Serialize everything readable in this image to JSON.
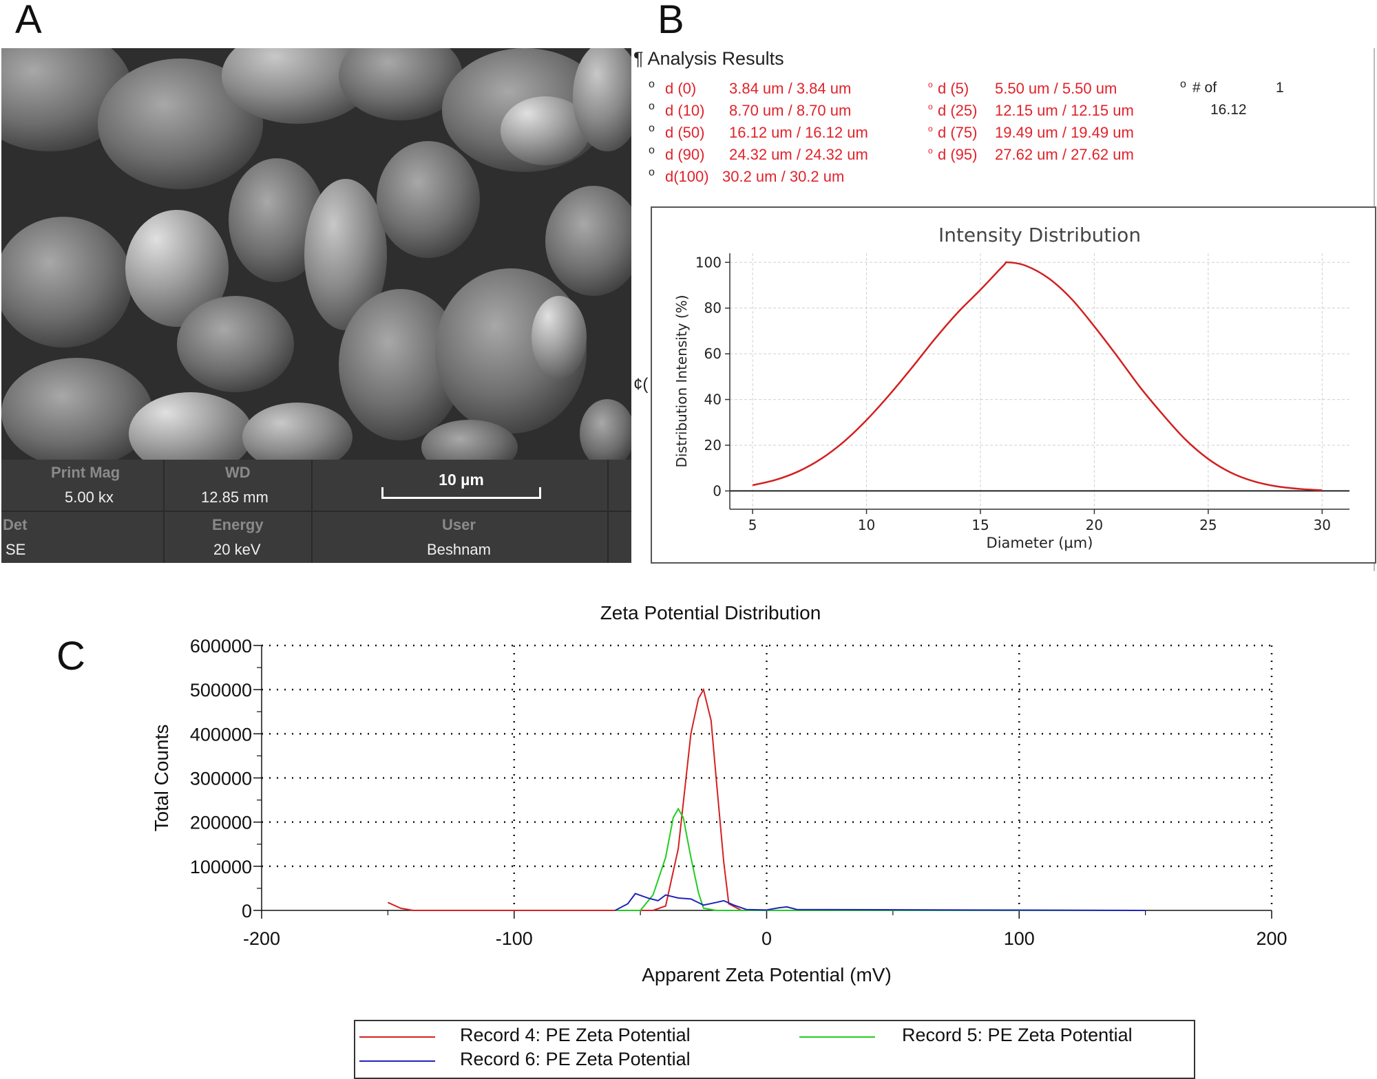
{
  "panels": {
    "a": "A",
    "b": "B",
    "c": "C"
  },
  "sem": {
    "print_mag_label": "Print Mag",
    "print_mag_value": "5.00 kx",
    "wd_label": "WD",
    "wd_value": "12.85 mm",
    "scale_bar_label": "10 µm",
    "det_label": "Det",
    "det_value": "SE",
    "energy_label": "Energy",
    "energy_value": "20 keV",
    "user_label": "User",
    "user_value": "Beshnam"
  },
  "analysis": {
    "title": "¶ Analysis Results",
    "col1": [
      {
        "label": "d (0)",
        "value": "3.84 um / 3.84 um"
      },
      {
        "label": "d (10)",
        "value": "8.70 um / 8.70 um"
      },
      {
        "label": "d (50)",
        "value": "16.12 um / 16.12 um"
      },
      {
        "label": "d (90)",
        "value": "24.32 um / 24.32 um"
      },
      {
        "label": "d(100)",
        "value": "30.2 um / 30.2 um"
      }
    ],
    "col2": [
      {
        "label": "d (5)",
        "value": "5.50 um / 5.50 um"
      },
      {
        "label": "d (25)",
        "value": "12.15 um / 12.15 um"
      },
      {
        "label": "d (75)",
        "value": "19.49 um / 19.49 um"
      },
      {
        "label": "d (95)",
        "value": "27.62 um / 27.62 um"
      }
    ],
    "count_label": "# of",
    "count_value": "1",
    "mean_value": "16.12",
    "side_marker": "¢("
  },
  "chart_data": [
    {
      "type": "line",
      "title": "Intensity Distribution",
      "xlabel": "Diameter (µm)",
      "ylabel": "Distribution Intensity (%)",
      "xlim": [
        4,
        31.2
      ],
      "ylim": [
        -8,
        104
      ],
      "xticks": [
        5,
        10,
        15,
        20,
        25,
        30
      ],
      "yticks": [
        0,
        20,
        40,
        60,
        80,
        100
      ],
      "grid": true,
      "color": "#d22020",
      "x": [
        5,
        6,
        7,
        8,
        9,
        10,
        11,
        12,
        13,
        14,
        15,
        16,
        16.2,
        17,
        18,
        19,
        20,
        21,
        22,
        23,
        24,
        25,
        26,
        27,
        28,
        29,
        30
      ],
      "y": [
        2.5,
        4.8,
        8.5,
        14,
        21.5,
        31,
        42,
        54,
        66.5,
        78,
        88,
        98.5,
        100,
        98.5,
        93,
        84,
        72,
        59,
        45.5,
        33.5,
        22.5,
        14,
        8,
        4.2,
        2,
        0.9,
        0.3
      ]
    },
    {
      "type": "line",
      "title": "Zeta Potential Distribution",
      "xlabel": "Apparent Zeta Potential (mV)",
      "ylabel": "Total Counts",
      "xlim": [
        -200,
        200
      ],
      "ylim": [
        0,
        600000
      ],
      "xticks": [
        -200,
        -100,
        0,
        100,
        200
      ],
      "yticks": [
        0,
        100000,
        200000,
        300000,
        400000,
        500000,
        600000
      ],
      "grid": true,
      "legend": "bottom",
      "series": [
        {
          "name": "Record 4: PE Zeta Potential",
          "color": "#d42020",
          "x": [
            -150,
            -145,
            -140,
            -60,
            -45,
            -40,
            -35,
            -30,
            -27,
            -25,
            -22,
            -20,
            -17,
            -15,
            -10,
            0,
            150
          ],
          "y": [
            18000,
            5000,
            0,
            0,
            0,
            10000,
            140000,
            400000,
            480000,
            500000,
            430000,
            300000,
            110000,
            15000,
            0,
            0,
            0
          ]
        },
        {
          "name": "Record 5: PE Zeta Potential",
          "color": "#22cc22",
          "x": [
            -60,
            -50,
            -45,
            -40,
            -37,
            -35,
            -33,
            -30,
            -27,
            -25,
            -20,
            150
          ],
          "y": [
            0,
            0,
            35000,
            120000,
            210000,
            230000,
            210000,
            120000,
            40000,
            5000,
            0,
            0
          ]
        },
        {
          "name": "Record 6: PE Zeta Potential",
          "color": "#2222bb",
          "x": [
            -60,
            -55,
            -52,
            -47,
            -43,
            -40,
            -35,
            -30,
            -25,
            -20,
            -17,
            -13,
            -8,
            0,
            5,
            8,
            12,
            150
          ],
          "y": [
            0,
            15000,
            38000,
            28000,
            22000,
            35000,
            28000,
            26000,
            12000,
            18000,
            22000,
            12000,
            2000,
            1000,
            6000,
            8000,
            2000,
            0
          ]
        }
      ]
    }
  ]
}
